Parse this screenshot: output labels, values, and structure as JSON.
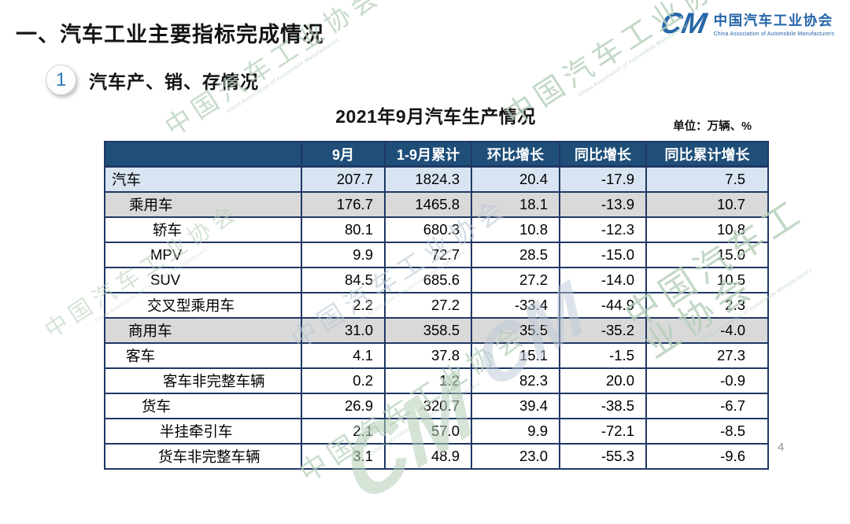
{
  "page_title": "一、汽车工业主要指标完成情况",
  "logo": {
    "mark": "CM",
    "name_cn": "中国汽车工业协会",
    "name_en": "China Association of Automobile Manufacturers"
  },
  "section": {
    "badge": "1",
    "title": "汽车产、销、存情况"
  },
  "table": {
    "title": "2021年9月汽车生产情况",
    "unit_label": "单位：万辆、%",
    "columns": [
      "",
      "9月",
      "1-9月累计",
      "环比增长",
      "同比增长",
      "同比累计增长"
    ],
    "rows": [
      {
        "label": "汽车",
        "indent": 8,
        "bg": "blue",
        "values": [
          "207.7",
          "1824.3",
          "20.4",
          "-17.9",
          "7.5"
        ]
      },
      {
        "label": "乘用车",
        "indent": 30,
        "bg": "gray",
        "values": [
          "176.7",
          "1465.8",
          "18.1",
          "-13.9",
          "10.7"
        ]
      },
      {
        "label": "轿车",
        "indent": 60,
        "bg": "white",
        "values": [
          "80.1",
          "680.3",
          "10.8",
          "-12.3",
          "10.8"
        ]
      },
      {
        "label": "MPV",
        "indent": 57,
        "bg": "white",
        "values": [
          "9.9",
          "72.7",
          "28.5",
          "-15.0",
          "15.0"
        ]
      },
      {
        "label": "SUV",
        "indent": 57,
        "bg": "white",
        "values": [
          "84.5",
          "685.6",
          "27.2",
          "-14.0",
          "10.5"
        ]
      },
      {
        "label": "交叉型乘用车",
        "indent": 53,
        "bg": "white",
        "values": [
          "2.2",
          "27.2",
          "-33.4",
          "-44.9",
          "2.3"
        ]
      },
      {
        "label": "商用车",
        "indent": 29,
        "bg": "gray",
        "values": [
          "31.0",
          "358.5",
          "35.5",
          "-35.2",
          "-4.0"
        ]
      },
      {
        "label": "客车",
        "indent": 26,
        "bg": "white",
        "values": [
          "4.1",
          "37.8",
          "15.1",
          "-1.5",
          "27.3"
        ]
      },
      {
        "label": "客车非完整车辆",
        "indent": 73,
        "bg": "white",
        "values": [
          "0.2",
          "1.2",
          "82.3",
          "20.0",
          "-0.9"
        ]
      },
      {
        "label": "货车",
        "indent": 46,
        "bg": "white",
        "values": [
          "26.9",
          "320.7",
          "39.4",
          "-38.5",
          "-6.7"
        ]
      },
      {
        "label": "半挂牵引车",
        "indent": 69,
        "bg": "white",
        "values": [
          "2.1",
          "57.0",
          "9.9",
          "-72.1",
          "-8.5"
        ]
      },
      {
        "label": "货车非完整车辆",
        "indent": 67,
        "bg": "white",
        "values": [
          "3.1",
          "48.9",
          "23.0",
          "-55.3",
          "-9.6"
        ]
      }
    ]
  },
  "watermark": {
    "text_cn": "中国汽车工业协会",
    "text_en": "China Association of Automobile Manufacturers",
    "mark": "CM"
  },
  "page_number": "4",
  "colors": {
    "header_bg": "#1F4E79",
    "table_border": "#1F3864",
    "row_blue": "#D9E4F2",
    "row_gray": "#D9D9D9",
    "logo_blue": "#2565A8",
    "watermark_green": "#B5CFB9",
    "watermark_blue": "#BCC8D6"
  }
}
